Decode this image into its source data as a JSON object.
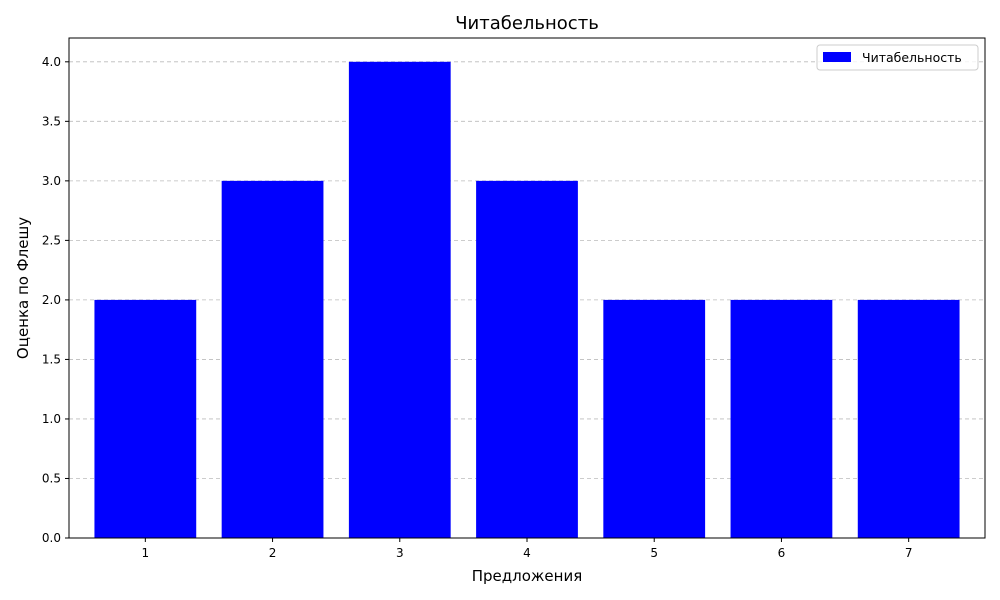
{
  "chart_data": {
    "type": "bar",
    "title": "Читабельность",
    "xlabel": "Предложения",
    "ylabel": "Оценка по Флешу",
    "categories": [
      "1",
      "2",
      "3",
      "4",
      "5",
      "6",
      "7"
    ],
    "series": [
      {
        "name": "Читабельность",
        "values": [
          2,
          3,
          4,
          3,
          2,
          2,
          2
        ],
        "color": "#0000ff"
      }
    ],
    "ylim": [
      0,
      4.2
    ],
    "yticks": [
      "0.0",
      "0.5",
      "1.0",
      "1.5",
      "2.0",
      "2.5",
      "3.0",
      "3.5",
      "4.0"
    ],
    "grid": "y-dashed",
    "legend_position": "top-right"
  }
}
